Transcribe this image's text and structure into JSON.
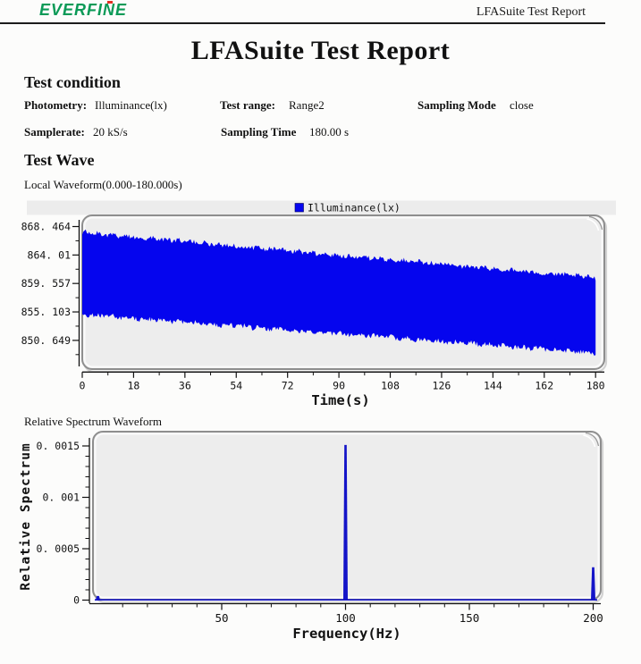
{
  "header": {
    "logo_text": "EVERFINE",
    "doc_name": "LFASuite Test Report"
  },
  "title": "LFASuite Test Report",
  "test_condition": {
    "heading": "Test condition",
    "fields": [
      {
        "label": "Photometry:",
        "value": "Illuminance(lx)"
      },
      {
        "label": "Test range:",
        "value": "Range2"
      },
      {
        "label": "Sampling Mode",
        "value": "close"
      },
      {
        "label": "Samplerate:",
        "value": "20 kS/s"
      },
      {
        "label": "Sampling Time",
        "value": "180.00 s"
      }
    ]
  },
  "test_wave": {
    "heading": "Test Wave",
    "local_waveform_label": "Local Waveform(0.000-180.000s)",
    "relative_spectrum_label": "Relative Spectrum Waveform"
  },
  "colors": {
    "wave_blue": "#0505ee",
    "spectrum_blue": "#1414c8",
    "logo_green": "#0b9a57",
    "panel_fill": "#ededed",
    "panel_edge": "#8e8e8e"
  },
  "chart_data": [
    {
      "type": "area",
      "title": "Local Waveform(0.000-180.000s)",
      "legend": [
        {
          "label": "Illuminance(lx)",
          "color": "#0505ee"
        }
      ],
      "xlabel": "Time(s)",
      "ylabel": "",
      "x_ticks": [
        0,
        18,
        36,
        54,
        72,
        90,
        108,
        126,
        144,
        162,
        180
      ],
      "x_minor_step": 9,
      "y_tick_values": [
        868.464,
        864.01,
        859.557,
        855.103,
        850.649
      ],
      "y_tick_labels": [
        "868. 464",
        "864. 01",
        "859. 557",
        "855. 103",
        "850. 649"
      ],
      "xlim": [
        0,
        180
      ],
      "ylim": [
        846.6,
        869.5
      ],
      "grid": false,
      "legend_position": "top-center",
      "envelope": {
        "description": "dense AC waveform band, linearly decaying",
        "t": [
          0,
          180
        ],
        "top": [
          867.55,
          860.45
        ],
        "bottom": [
          854.7,
          848.7
        ],
        "noise_amp_lx": 0.38
      }
    },
    {
      "type": "line",
      "title": "Relative Spectrum Waveform",
      "xlabel": "Frequency(Hz)",
      "ylabel": "Relative Spectrum",
      "x_ticks": [
        50,
        100,
        150,
        200
      ],
      "x_minor_step": 10,
      "y_tick_values": [
        0,
        0.0005,
        0.001,
        0.0015
      ],
      "y_tick_labels": [
        "0",
        "0. 0005",
        "0. 001",
        "0. 0015"
      ],
      "xlim": [
        0,
        200
      ],
      "ylim": [
        0,
        0.0016
      ],
      "grid": false,
      "baseline": 0,
      "peaks": [
        {
          "x": 0,
          "y": 4e-05
        },
        {
          "x": 100,
          "y": 0.00151
        },
        {
          "x": 200,
          "y": 0.00032
        }
      ]
    }
  ]
}
